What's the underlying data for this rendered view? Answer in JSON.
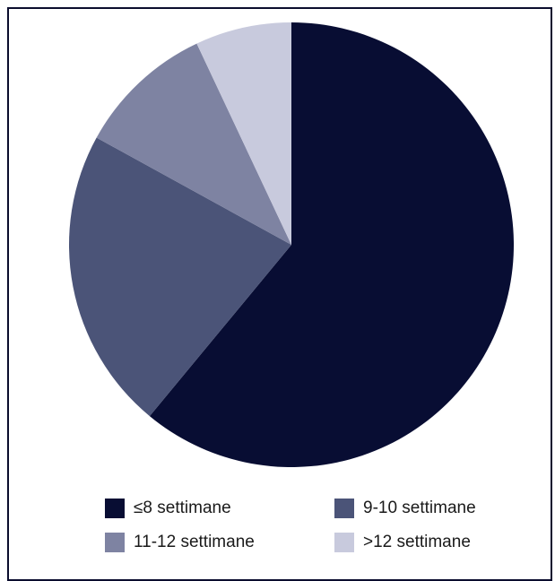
{
  "chart_data": {
    "type": "pie",
    "title": "",
    "categories": [
      "≤8 settimane",
      "9-10 settimane",
      "11-12 settimane",
      ">12 settimane"
    ],
    "values": [
      61,
      22,
      10,
      7
    ],
    "colors": [
      "#080d33",
      "#4b5478",
      "#7e83a2",
      "#c8cadd"
    ],
    "start": "12 o'clock",
    "direction": "clockwise",
    "legend": "bottom, 2 columns"
  }
}
